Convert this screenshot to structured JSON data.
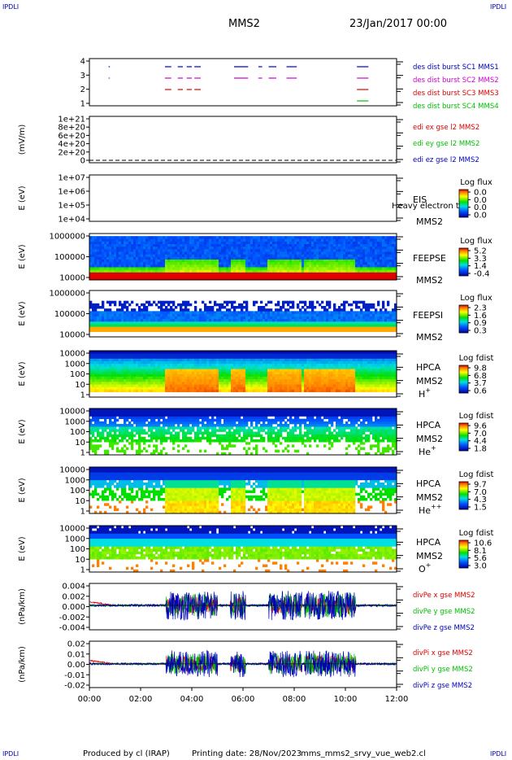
{
  "corner_label": "IPDLI",
  "header": {
    "spacecraft": "MMS2",
    "datetime": "23/Jan/2017 00:00"
  },
  "footer": {
    "produced_by": "Produced by cl (IRAP)",
    "printing_date": "Printing date: 28/Nov/2023",
    "filename": "mms_mms2_srvy_vue_web2.cl"
  },
  "colors": {
    "red": "#e00000",
    "green": "#00c000",
    "blue": "#0000d0",
    "magenta": "#d000d0",
    "label_blue": "#0000c0",
    "sat_red": "#e00000"
  },
  "chart_data": [
    {
      "type": "timeline",
      "title": "burst availability",
      "ylim": [
        0.5,
        4.5
      ],
      "yticks": [
        "1",
        "2",
        "3",
        "4"
      ],
      "xlim_hours": [
        0,
        12
      ],
      "series": [
        {
          "name": "des dist burst SC1 MMS1",
          "level": 4,
          "color": "#0000c0",
          "segments": [
            [
              0.75,
              0.8
            ],
            [
              2.95,
              3.2
            ],
            [
              3.45,
              3.65
            ],
            [
              3.8,
              4.0
            ],
            [
              4.1,
              4.35
            ],
            [
              5.65,
              6.2
            ],
            [
              6.6,
              6.75
            ],
            [
              7.0,
              7.3
            ],
            [
              7.7,
              8.1
            ],
            [
              10.45,
              10.9
            ]
          ]
        },
        {
          "name": "des dist burst SC2 MMS2",
          "level": 3,
          "color": "#d000d0",
          "segments": [
            [
              0.75,
              0.8
            ],
            [
              2.95,
              3.2
            ],
            [
              3.45,
              3.65
            ],
            [
              3.8,
              4.0
            ],
            [
              4.1,
              4.35
            ],
            [
              5.65,
              6.2
            ],
            [
              6.6,
              6.75
            ],
            [
              7.0,
              7.3
            ],
            [
              7.7,
              8.1
            ],
            [
              10.45,
              10.9
            ]
          ]
        },
        {
          "name": "des dist burst SC3 MMS3",
          "level": 2,
          "color": "#e00000",
          "segments": [
            [
              2.95,
              3.2
            ],
            [
              3.45,
              3.65
            ],
            [
              3.8,
              4.0
            ],
            [
              4.1,
              4.35
            ],
            [
              10.45,
              10.9
            ]
          ]
        },
        {
          "name": "des dist burst SC4 MMS4",
          "level": 1,
          "color": "#00c000",
          "segments": [
            [
              10.45,
              10.9
            ]
          ]
        }
      ]
    },
    {
      "type": "line",
      "ylabel": "(mV/m)",
      "yticks": [
        "0",
        "2e+20",
        "4e+20",
        "6e+20",
        "8e+20",
        "1e+21"
      ],
      "series": [
        {
          "name": "edi ex gse l2 MMS2",
          "color": "#e00000"
        },
        {
          "name": "edi ey gse l2 MMS2",
          "color": "#00c000"
        },
        {
          "name": "edi ez gse l2 MMS2",
          "color": "#0000c0"
        }
      ]
    },
    {
      "type": "heatmap",
      "ylabel": "E (eV)",
      "yticks": [
        "1e+04",
        "1e+05",
        "1e+06",
        "1e+07"
      ],
      "instrument": "EIS",
      "sc": "MMS2",
      "overlay_text": "Heavy electron to",
      "colorbar": {
        "title": "Log flux",
        "ticks": [
          "0.0",
          "0.0",
          "0.0",
          "0.0"
        ]
      }
    },
    {
      "type": "heatmap",
      "ylabel": "E (eV)",
      "yticks": [
        "10000",
        "100000",
        "1000000"
      ],
      "instrument": "FEEPSE",
      "sc": "MMS2",
      "colorbar": {
        "title": "Log flux",
        "ticks": [
          "5.2",
          "3.3",
          "1.4",
          "-0.4"
        ]
      }
    },
    {
      "type": "heatmap",
      "ylabel": "E (eV)",
      "yticks": [
        "10000",
        "100000",
        "1000000"
      ],
      "instrument": "FEEPSI",
      "sc": "MMS2",
      "colorbar": {
        "title": "Log flux",
        "ticks": [
          "2.3",
          "1.6",
          "0.9",
          "0.3"
        ]
      }
    },
    {
      "type": "heatmap",
      "ylabel": "E (eV)",
      "yticks": [
        "1",
        "10",
        "100",
        "1000",
        "10000"
      ],
      "instrument": "HPCA",
      "sc": "MMS2",
      "species": "H",
      "species_sup": "+",
      "colorbar": {
        "title": "Log fdist",
        "ticks": [
          "9.8",
          "6.8",
          "3.7",
          "0.6"
        ]
      }
    },
    {
      "type": "heatmap",
      "ylabel": "E (eV)",
      "yticks": [
        "1",
        "10",
        "100",
        "1000",
        "10000"
      ],
      "instrument": "HPCA",
      "sc": "MMS2",
      "species": "He",
      "species_sup": "+",
      "colorbar": {
        "title": "Log fdist",
        "ticks": [
          "9.6",
          "7.0",
          "4.4",
          "1.8"
        ]
      }
    },
    {
      "type": "heatmap",
      "ylabel": "E (eV)",
      "yticks": [
        "1",
        "10",
        "100",
        "1000",
        "10000"
      ],
      "instrument": "HPCA",
      "sc": "MMS2",
      "species": "He",
      "species_sup": "++",
      "colorbar": {
        "title": "Log fdist",
        "ticks": [
          "9.7",
          "7.0",
          "4.3",
          "1.5"
        ]
      }
    },
    {
      "type": "heatmap",
      "ylabel": "E (eV)",
      "yticks": [
        "1",
        "10",
        "100",
        "1000",
        "10000"
      ],
      "instrument": "HPCA",
      "sc": "MMS2",
      "species": "O",
      "species_sup": "+",
      "colorbar": {
        "title": "Log fdist",
        "ticks": [
          "10.6",
          "8.1",
          "5.6",
          "3.0"
        ]
      }
    },
    {
      "type": "line",
      "ylabel": "(nPa/km)",
      "yticks": [
        "-0.004",
        "-0.002",
        "0.000",
        "0.002",
        "0.004"
      ],
      "ylim": [
        -0.005,
        0.0045
      ],
      "series": [
        {
          "name": "divPe x gse MMS2",
          "color": "#e00000"
        },
        {
          "name": "divPe y gse MMS2",
          "color": "#00c000"
        },
        {
          "name": "divPe z gse MMS2",
          "color": "#0000c0"
        }
      ]
    },
    {
      "type": "line",
      "ylabel": "(nPa/km)",
      "yticks": [
        "-0.02",
        "-0.01",
        "0.00",
        "0.01",
        "0.02"
      ],
      "ylim": [
        -0.023,
        0.022
      ],
      "series": [
        {
          "name": "divPi x gse MMS2",
          "color": "#e00000"
        },
        {
          "name": "divPi y gse MMS2",
          "color": "#00c000"
        },
        {
          "name": "divPi z gse MMS2",
          "color": "#0000c0"
        }
      ],
      "xticks": [
        "00:00",
        "02:00",
        "04:00",
        "06:00",
        "08:00",
        "10:00",
        "12:00"
      ]
    }
  ]
}
